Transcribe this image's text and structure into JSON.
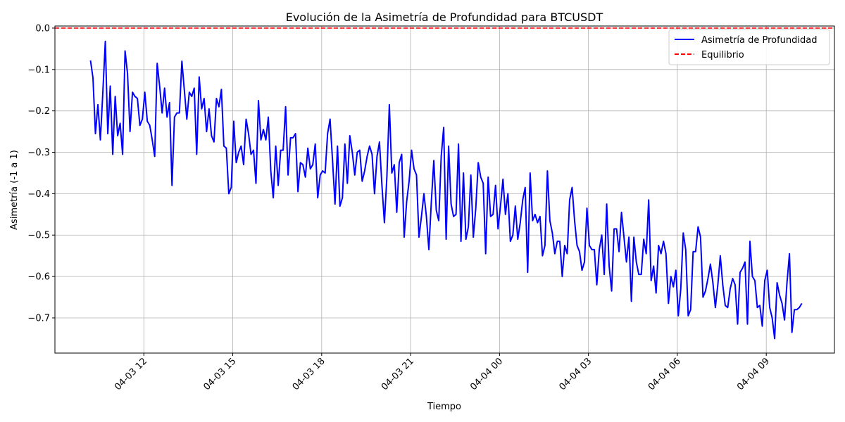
{
  "chart_data": {
    "type": "line",
    "title": "Evolución de la Asimetría de Profundidad para BTCUSDT",
    "xlabel": "Tiempo",
    "ylabel": "Asimetría (-1 a 1)",
    "x_range_hours": [
      -3.0,
      23.3
    ],
    "ylim": [
      -0.785,
      0.005
    ],
    "grid": true,
    "legend_position": "top-right",
    "x_ticks": [
      {
        "hours": 0,
        "label": "04-03 12"
      },
      {
        "hours": 3,
        "label": "04-03 15"
      },
      {
        "hours": 6,
        "label": "04-03 18"
      },
      {
        "hours": 9,
        "label": "04-03 21"
      },
      {
        "hours": 12,
        "label": "04-04 00"
      },
      {
        "hours": 15,
        "label": "04-04 03"
      },
      {
        "hours": 18,
        "label": "04-04 06"
      },
      {
        "hours": 21,
        "label": "04-04 09"
      }
    ],
    "y_ticks": [
      {
        "value": 0.0,
        "label": "0.0"
      },
      {
        "value": -0.1,
        "label": "−0.1"
      },
      {
        "value": -0.2,
        "label": "−0.2"
      },
      {
        "value": -0.3,
        "label": "−0.3"
      },
      {
        "value": -0.4,
        "label": "−0.4"
      },
      {
        "value": -0.5,
        "label": "−0.5"
      },
      {
        "value": -0.6,
        "label": "−0.6"
      },
      {
        "value": -0.7,
        "label": "−0.7"
      }
    ],
    "series": [
      {
        "name": "Asimetría de Profundidad",
        "color": "#0000ff",
        "start_hours": -1.8,
        "step_hours": 0.08333,
        "values": [
          -0.078,
          -0.12,
          -0.255,
          -0.185,
          -0.27,
          -0.155,
          -0.032,
          -0.255,
          -0.14,
          -0.305,
          -0.165,
          -0.26,
          -0.23,
          -0.305,
          -0.055,
          -0.11,
          -0.25,
          -0.155,
          -0.165,
          -0.17,
          -0.235,
          -0.22,
          -0.155,
          -0.225,
          -0.235,
          -0.27,
          -0.31,
          -0.085,
          -0.14,
          -0.205,
          -0.145,
          -0.215,
          -0.18,
          -0.38,
          -0.215,
          -0.205,
          -0.205,
          -0.08,
          -0.15,
          -0.22,
          -0.155,
          -0.165,
          -0.145,
          -0.305,
          -0.118,
          -0.195,
          -0.17,
          -0.25,
          -0.195,
          -0.26,
          -0.275,
          -0.17,
          -0.19,
          -0.148,
          -0.285,
          -0.29,
          -0.4,
          -0.385,
          -0.225,
          -0.325,
          -0.3,
          -0.285,
          -0.33,
          -0.22,
          -0.255,
          -0.305,
          -0.295,
          -0.375,
          -0.175,
          -0.27,
          -0.245,
          -0.27,
          -0.215,
          -0.345,
          -0.41,
          -0.285,
          -0.38,
          -0.295,
          -0.295,
          -0.19,
          -0.355,
          -0.265,
          -0.265,
          -0.255,
          -0.395,
          -0.325,
          -0.33,
          -0.36,
          -0.29,
          -0.34,
          -0.33,
          -0.28,
          -0.41,
          -0.355,
          -0.345,
          -0.35,
          -0.255,
          -0.22,
          -0.32,
          -0.425,
          -0.285,
          -0.43,
          -0.41,
          -0.28,
          -0.375,
          -0.26,
          -0.3,
          -0.355,
          -0.3,
          -0.295,
          -0.37,
          -0.345,
          -0.31,
          -0.285,
          -0.305,
          -0.4,
          -0.31,
          -0.275,
          -0.38,
          -0.47,
          -0.36,
          -0.185,
          -0.35,
          -0.33,
          -0.445,
          -0.325,
          -0.305,
          -0.505,
          -0.42,
          -0.37,
          -0.295,
          -0.34,
          -0.355,
          -0.505,
          -0.455,
          -0.4,
          -0.455,
          -0.535,
          -0.42,
          -0.32,
          -0.44,
          -0.465,
          -0.31,
          -0.24,
          -0.51,
          -0.285,
          -0.425,
          -0.455,
          -0.45,
          -0.28,
          -0.515,
          -0.35,
          -0.51,
          -0.48,
          -0.355,
          -0.505,
          -0.435,
          -0.325,
          -0.36,
          -0.375,
          -0.545,
          -0.36,
          -0.455,
          -0.45,
          -0.38,
          -0.485,
          -0.43,
          -0.365,
          -0.45,
          -0.4,
          -0.515,
          -0.5,
          -0.43,
          -0.51,
          -0.47,
          -0.415,
          -0.385,
          -0.59,
          -0.35,
          -0.465,
          -0.45,
          -0.47,
          -0.455,
          -0.55,
          -0.525,
          -0.345,
          -0.465,
          -0.495,
          -0.545,
          -0.515,
          -0.515,
          -0.6,
          -0.525,
          -0.545,
          -0.415,
          -0.385,
          -0.465,
          -0.525,
          -0.54,
          -0.585,
          -0.565,
          -0.435,
          -0.525,
          -0.535,
          -0.535,
          -0.62,
          -0.535,
          -0.5,
          -0.595,
          -0.425,
          -0.575,
          -0.635,
          -0.485,
          -0.485,
          -0.54,
          -0.445,
          -0.505,
          -0.565,
          -0.505,
          -0.66,
          -0.505,
          -0.565,
          -0.595,
          -0.595,
          -0.51,
          -0.545,
          -0.415,
          -0.61,
          -0.575,
          -0.64,
          -0.525,
          -0.545,
          -0.515,
          -0.545,
          -0.665,
          -0.6,
          -0.625,
          -0.585,
          -0.695,
          -0.63,
          -0.495,
          -0.535,
          -0.695,
          -0.68,
          -0.54,
          -0.54,
          -0.48,
          -0.505,
          -0.65,
          -0.635,
          -0.605,
          -0.57,
          -0.615,
          -0.675,
          -0.62,
          -0.55,
          -0.62,
          -0.67,
          -0.675,
          -0.63,
          -0.605,
          -0.62,
          -0.715,
          -0.59,
          -0.58,
          -0.565,
          -0.715,
          -0.515,
          -0.6,
          -0.61,
          -0.675,
          -0.67,
          -0.72,
          -0.61,
          -0.585,
          -0.675,
          -0.7,
          -0.75,
          -0.615,
          -0.645,
          -0.665,
          -0.705,
          -0.615,
          -0.545,
          -0.735,
          -0.68,
          -0.68,
          -0.675,
          -0.665
        ]
      },
      {
        "name": "Equilibrio",
        "color": "#ff0000",
        "dashed": true,
        "constant": 0.0
      }
    ]
  }
}
